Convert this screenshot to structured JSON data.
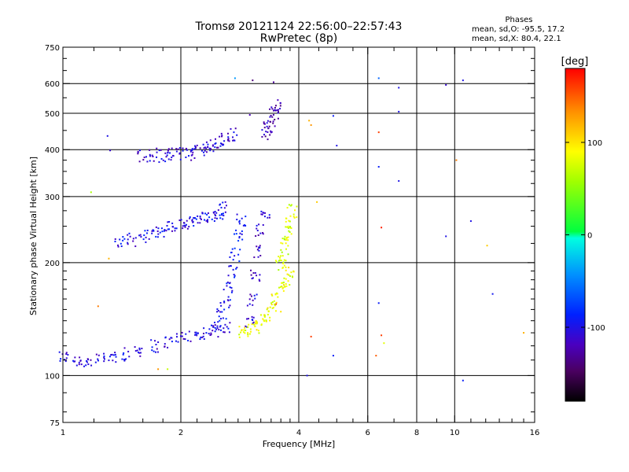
{
  "header": {
    "title_line1": "Tromsø 20121124 22:56:00–22:57:43",
    "title_line2": "RwPretec (8p)",
    "stats_heading": "Phases",
    "stats_o": "mean, sd,O: -95.5, 17.2",
    "stats_x": "mean, sd,X: 80.4, 22.1"
  },
  "colorbar": {
    "label": "[deg]",
    "min": -180,
    "max": 180,
    "tick_values": [
      100,
      0,
      -100
    ],
    "tick_labels": [
      "100",
      "0",
      "-100"
    ]
  },
  "chart_data": {
    "type": "scatter",
    "title": "",
    "xlabel": "Frequency [MHz]",
    "ylabel": "Stationary phase Virtual Height [km]",
    "x_scale": "log",
    "y_scale": "log",
    "xlim": [
      1,
      16
    ],
    "ylim": [
      75,
      750
    ],
    "x_ticks": [
      1,
      2,
      4,
      6,
      8,
      10,
      16
    ],
    "x_tick_labels": [
      "1",
      "2",
      "4",
      "6",
      "8",
      "10",
      "16"
    ],
    "y_ticks": [
      75,
      100,
      200,
      300,
      400,
      500,
      600,
      750
    ],
    "y_tick_labels": [
      "75",
      "100",
      "200",
      "300",
      "400",
      "500",
      "600",
      "750"
    ],
    "x_minor_ticks": [
      1.2,
      1.4,
      1.6,
      1.8,
      2.2,
      2.4,
      2.6,
      2.8,
      3,
      3.2,
      3.4,
      3.6,
      3.8,
      4.5,
      5,
      5.5,
      7,
      9,
      11,
      12,
      13,
      14,
      15
    ],
    "y_minor_ticks": [
      80,
      90,
      110,
      120,
      130,
      140,
      150,
      160,
      170,
      180,
      190,
      225,
      250,
      275,
      325,
      350,
      375,
      450,
      550,
      650,
      700
    ],
    "grid_x": [
      2,
      4,
      6,
      8,
      10
    ],
    "grid_y": [
      100,
      200,
      300,
      400,
      500,
      600
    ],
    "color_variable": "phase [deg]",
    "color_range": [
      -180,
      180
    ],
    "traces": [
      {
        "kind": "O",
        "phase": -105,
        "x": [
          1.0,
          1.08,
          1.15,
          1.25,
          1.35,
          1.45,
          1.55,
          1.7,
          1.85,
          2.0,
          2.15,
          2.3,
          2.45,
          2.6
        ],
        "y": [
          112,
          110,
          109,
          110,
          112,
          114,
          117,
          120,
          123,
          126,
          128,
          130,
          132,
          135
        ]
      },
      {
        "kind": "O",
        "phase": -95,
        "x": [
          2.45,
          2.55,
          2.6,
          2.65,
          2.7,
          2.75,
          2.8,
          2.85
        ],
        "y": [
          135,
          145,
          158,
          172,
          190,
          210,
          235,
          260
        ]
      },
      {
        "kind": "O",
        "phase": -110,
        "x": [
          3.0,
          3.05,
          3.1,
          3.15,
          3.2,
          3.3
        ],
        "y": [
          140,
          160,
          185,
          215,
          245,
          270
        ]
      },
      {
        "kind": "O",
        "phase": -100,
        "x": [
          1.4,
          1.5,
          1.6,
          1.7,
          1.8,
          1.9,
          2.0,
          2.1,
          2.2,
          2.3,
          2.4,
          2.5,
          2.55
        ],
        "y": [
          226,
          230,
          235,
          240,
          244,
          248,
          252,
          255,
          258,
          262,
          266,
          272,
          280
        ]
      },
      {
        "kind": "O",
        "phase": -108,
        "x": [
          1.6,
          1.7,
          1.8,
          1.9,
          2.0,
          2.1,
          2.2,
          2.3,
          2.4,
          2.5,
          2.6,
          2.7
        ],
        "y": [
          386,
          388,
          385,
          388,
          392,
          390,
          395,
          400,
          410,
          418,
          428,
          440
        ]
      },
      {
        "kind": "O",
        "phase": -120,
        "x": [
          3.3,
          3.35,
          3.4,
          3.45,
          3.5
        ],
        "y": [
          440,
          460,
          480,
          500,
          530
        ]
      },
      {
        "kind": "X",
        "phase": 85,
        "x": [
          2.9,
          3.0,
          3.1,
          3.2,
          3.3,
          3.4,
          3.5,
          3.6,
          3.7,
          3.8
        ],
        "y": [
          130,
          132,
          135,
          140,
          145,
          152,
          160,
          170,
          180,
          190
        ]
      },
      {
        "kind": "X",
        "phase": 75,
        "x": [
          3.6,
          3.65,
          3.7,
          3.75,
          3.8,
          3.85
        ],
        "y": [
          195,
          210,
          225,
          240,
          255,
          275
        ]
      }
    ],
    "isolated_points": [
      {
        "x": 2.75,
        "y": 620,
        "phase": -40
      },
      {
        "x": 3.05,
        "y": 612,
        "phase": -140
      },
      {
        "x": 3.45,
        "y": 605,
        "phase": -130
      },
      {
        "x": 3.0,
        "y": 495,
        "phase": -120
      },
      {
        "x": 6.4,
        "y": 620,
        "phase": -60
      },
      {
        "x": 7.2,
        "y": 585,
        "phase": -100
      },
      {
        "x": 7.2,
        "y": 505,
        "phase": -100
      },
      {
        "x": 9.5,
        "y": 595,
        "phase": -110
      },
      {
        "x": 10.5,
        "y": 612,
        "phase": -100
      },
      {
        "x": 4.25,
        "y": 478,
        "phase": 120
      },
      {
        "x": 4.3,
        "y": 465,
        "phase": 130
      },
      {
        "x": 4.9,
        "y": 492,
        "phase": -90
      },
      {
        "x": 5.0,
        "y": 410,
        "phase": -100
      },
      {
        "x": 6.4,
        "y": 445,
        "phase": 160
      },
      {
        "x": 6.4,
        "y": 360,
        "phase": -90
      },
      {
        "x": 7.2,
        "y": 330,
        "phase": -100
      },
      {
        "x": 10.1,
        "y": 375,
        "phase": 140
      },
      {
        "x": 6.5,
        "y": 248,
        "phase": 170
      },
      {
        "x": 11.0,
        "y": 258,
        "phase": -100
      },
      {
        "x": 12.1,
        "y": 222,
        "phase": 110
      },
      {
        "x": 9.5,
        "y": 235,
        "phase": -100
      },
      {
        "x": 12.5,
        "y": 165,
        "phase": -95
      },
      {
        "x": 15.0,
        "y": 130,
        "phase": 120
      },
      {
        "x": 6.4,
        "y": 156,
        "phase": -90
      },
      {
        "x": 6.5,
        "y": 128,
        "phase": 160
      },
      {
        "x": 6.6,
        "y": 122,
        "phase": 80
      },
      {
        "x": 6.3,
        "y": 113,
        "phase": 150
      },
      {
        "x": 4.3,
        "y": 127,
        "phase": 160
      },
      {
        "x": 4.9,
        "y": 113,
        "phase": -90
      },
      {
        "x": 4.2,
        "y": 100,
        "phase": -100
      },
      {
        "x": 10.5,
        "y": 97,
        "phase": -90
      },
      {
        "x": 1.18,
        "y": 308,
        "phase": 60
      },
      {
        "x": 1.31,
        "y": 205,
        "phase": 120
      },
      {
        "x": 1.23,
        "y": 153,
        "phase": 140
      },
      {
        "x": 1.75,
        "y": 104,
        "phase": 130
      },
      {
        "x": 1.85,
        "y": 104,
        "phase": 70
      },
      {
        "x": 1.3,
        "y": 435,
        "phase": -100
      },
      {
        "x": 1.32,
        "y": 398,
        "phase": -110
      },
      {
        "x": 4.45,
        "y": 290,
        "phase": 110
      },
      {
        "x": 3.5,
        "y": 155,
        "phase": 150
      },
      {
        "x": 3.6,
        "y": 148,
        "phase": 100
      }
    ]
  }
}
